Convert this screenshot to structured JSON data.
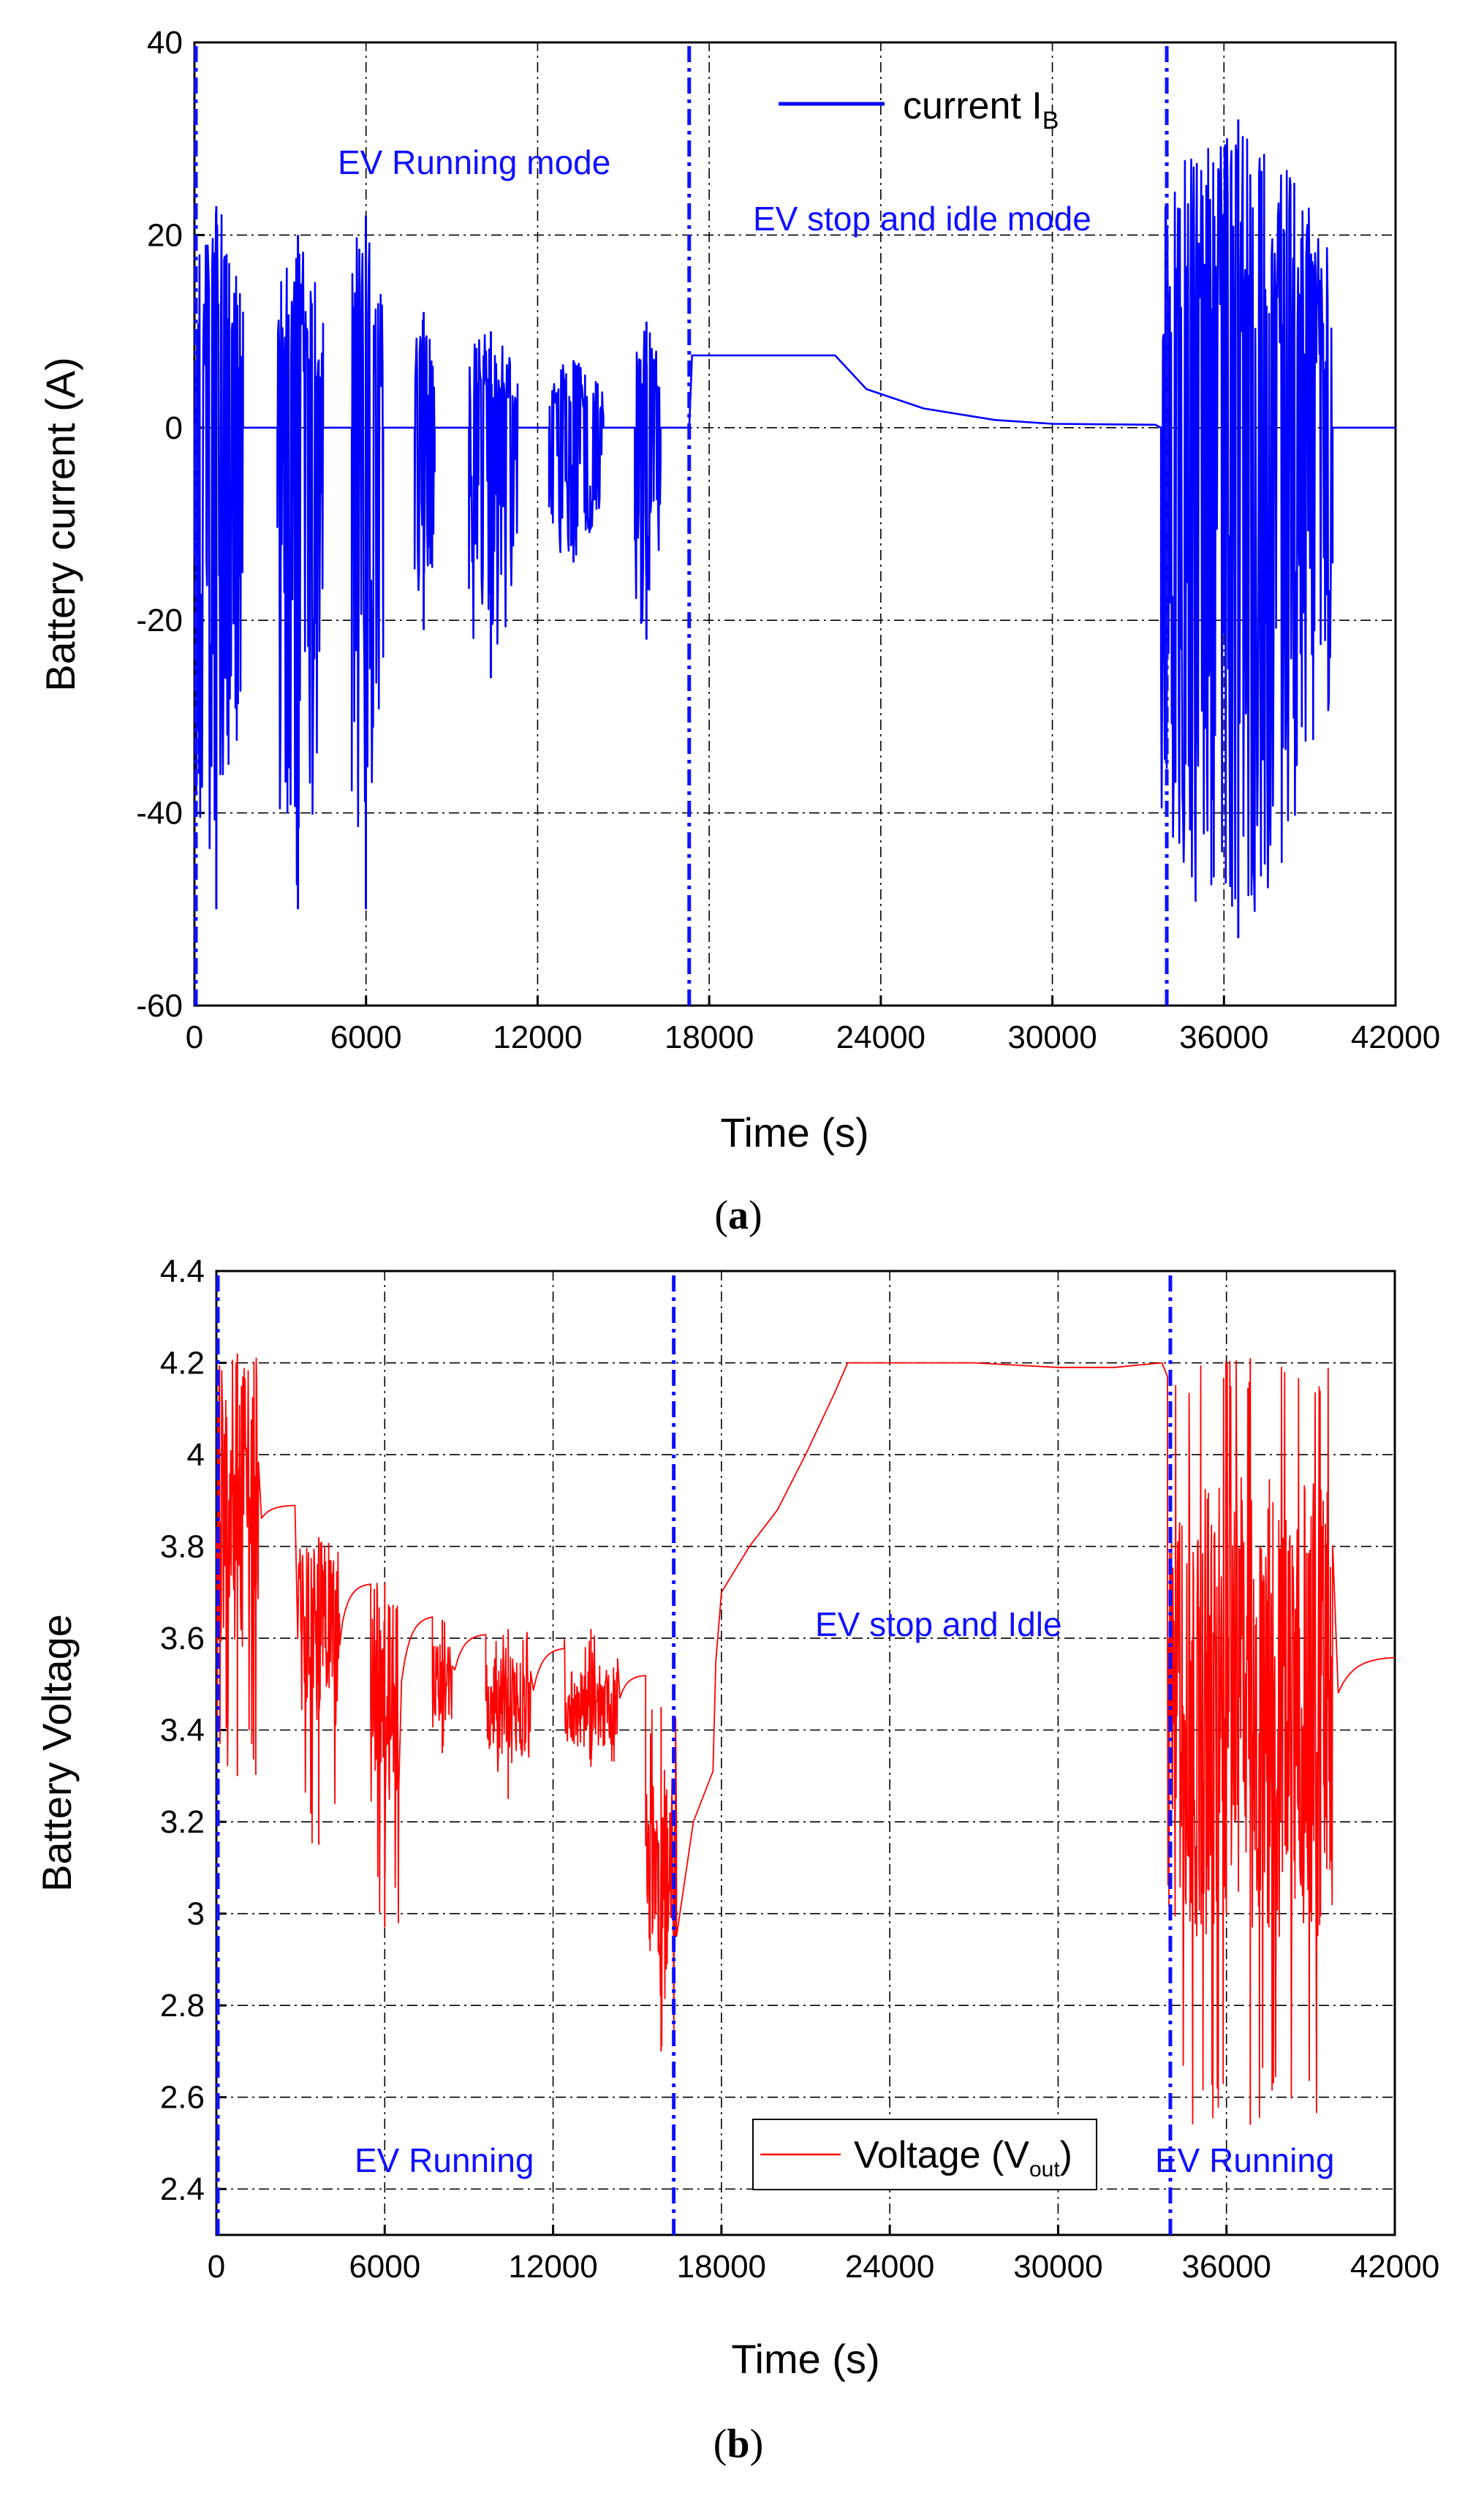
{
  "colors": {
    "current": "#0000ff",
    "voltage": "#ff0000",
    "marker": "#1010ff"
  },
  "chart_data": [
    {
      "id": "a",
      "type": "line",
      "caption": "a",
      "xlabel": "Time (s)",
      "ylabel": "Battery current (A)",
      "xlim": [
        0,
        42000
      ],
      "ylim": [
        -60,
        40
      ],
      "xticks": [
        0,
        6000,
        12000,
        18000,
        24000,
        30000,
        36000,
        42000
      ],
      "yticks": [
        -60,
        -40,
        -20,
        0,
        20,
        40
      ],
      "xtick_labels": [
        "0",
        "6000",
        "12000",
        "18000",
        "24000",
        "30000",
        "36000",
        "42000"
      ],
      "ytick_labels": [
        "-60",
        "-40",
        "-20",
        "0",
        "20",
        "40"
      ],
      "grid": true,
      "legend": {
        "position": "top-right",
        "label": "current I",
        "subscript": "B"
      },
      "mode_lines": [
        0,
        17300,
        34000
      ],
      "annotations": [
        "EV Running mode",
        "EV stop and idle mode"
      ],
      "series": [
        {
          "name": "current IB",
          "bursts": [
            {
              "start": 0,
              "end": 1700,
              "min": -50,
              "max": 23,
              "seed": 1
            },
            {
              "start": 2900,
              "end": 4500,
              "min": -50,
              "max": 20,
              "seed": 2
            },
            {
              "start": 5500,
              "end": 6600,
              "min": -50,
              "max": 22,
              "seed": 3
            },
            {
              "start": 7700,
              "end": 8400,
              "min": -21,
              "max": 12,
              "seed": 4
            },
            {
              "start": 9600,
              "end": 11300,
              "min": -26,
              "max": 10,
              "seed": 5
            },
            {
              "start": 12400,
              "end": 14300,
              "min": -14,
              "max": 7,
              "seed": 6
            },
            {
              "start": 15400,
              "end": 16300,
              "min": -22,
              "max": 11,
              "seed": 7
            },
            {
              "start": 33800,
              "end": 39800,
              "min": -53,
              "max": 32,
              "seed": 8
            }
          ],
          "idle_profile": [
            [
              17300,
              0
            ],
            [
              17400,
              7.5
            ],
            [
              22400,
              7.5
            ],
            [
              23500,
              4
            ],
            [
              25500,
              2
            ],
            [
              28000,
              0.8
            ],
            [
              30000,
              0.4
            ],
            [
              33600,
              0.3
            ],
            [
              33800,
              0
            ]
          ]
        }
      ]
    },
    {
      "id": "b",
      "type": "line",
      "caption": "b",
      "xlabel": "Time (s)",
      "ylabel": "Battery Voltage",
      "xlim": [
        0,
        42000
      ],
      "ylim": [
        2.3,
        4.4
      ],
      "xticks": [
        0,
        6000,
        12000,
        18000,
        24000,
        30000,
        36000,
        42000
      ],
      "yticks": [
        2.4,
        2.6,
        2.8,
        3.0,
        3.2,
        3.4,
        3.6,
        3.8,
        4.0,
        4.2,
        4.4
      ],
      "xtick_labels": [
        "0",
        "6000",
        "12000",
        "18000",
        "24000",
        "30000",
        "36000",
        "42000"
      ],
      "ytick_labels": [
        "2.4",
        "2.6",
        "2.8",
        "3",
        "3.2",
        "3.4",
        "3.6",
        "3.8",
        "4",
        "4.2",
        "4.4"
      ],
      "grid": true,
      "legend": {
        "position": "bottom-center",
        "label": "Voltage (V",
        "subscript": "out",
        "suffix": ")"
      },
      "mode_lines": [
        0,
        16300,
        34000
      ],
      "annotations": [
        "EV stop and Idle",
        "EV Running",
        "EV Running"
      ],
      "series": [
        {
          "name": "Voltage (Vout)",
          "segments": [
            {
              "start": 0,
              "end": 1500,
              "base": 3.85,
              "lo": 3.3,
              "hi": 4.22,
              "recover_end": 2800,
              "recover_to": 3.89,
              "seed": 11
            },
            {
              "start": 2900,
              "end": 4400,
              "base": 3.6,
              "lo": 3.15,
              "hi": 3.82,
              "recover_end": 5500,
              "recover_to": 3.72,
              "seed": 12
            },
            {
              "start": 5500,
              "end": 6500,
              "base": 3.45,
              "lo": 2.97,
              "hi": 3.72,
              "recover_end": 7700,
              "recover_to": 3.65,
              "seed": 13
            },
            {
              "start": 7700,
              "end": 8400,
              "base": 3.5,
              "lo": 3.35,
              "hi": 3.64,
              "recover_end": 9600,
              "recover_to": 3.61,
              "seed": 14
            },
            {
              "start": 9600,
              "end": 11200,
              "base": 3.45,
              "lo": 3.25,
              "hi": 3.62,
              "recover_end": 12400,
              "recover_to": 3.58,
              "seed": 15
            },
            {
              "start": 12400,
              "end": 14300,
              "base": 3.45,
              "lo": 3.32,
              "hi": 3.62,
              "recover_end": 15300,
              "recover_to": 3.52,
              "seed": 16
            },
            {
              "start": 15300,
              "end": 16400,
              "base": 3.1,
              "lo": 2.7,
              "hi": 3.45,
              "recover_end": 16400,
              "recover_to": 3.0,
              "seed": 17
            },
            {
              "start": 33900,
              "end": 39800,
              "base": 3.45,
              "lo": 2.54,
              "hi": 4.21,
              "recover_end": 42000,
              "recover_to": 3.56,
              "seed": 18
            }
          ],
          "idle_profile": [
            [
              16400,
              2.95
            ],
            [
              17000,
              3.2
            ],
            [
              17700,
              3.31
            ],
            [
              17800,
              3.55
            ],
            [
              18000,
              3.7
            ],
            [
              19000,
              3.8
            ],
            [
              20000,
              3.88
            ],
            [
              21000,
              4.0
            ],
            [
              22000,
              4.13
            ],
            [
              22500,
              4.2
            ],
            [
              27000,
              4.2
            ],
            [
              30000,
              4.19
            ],
            [
              32000,
              4.19
            ],
            [
              33700,
              4.2
            ],
            [
              33900,
              4.17
            ]
          ]
        }
      ]
    }
  ]
}
